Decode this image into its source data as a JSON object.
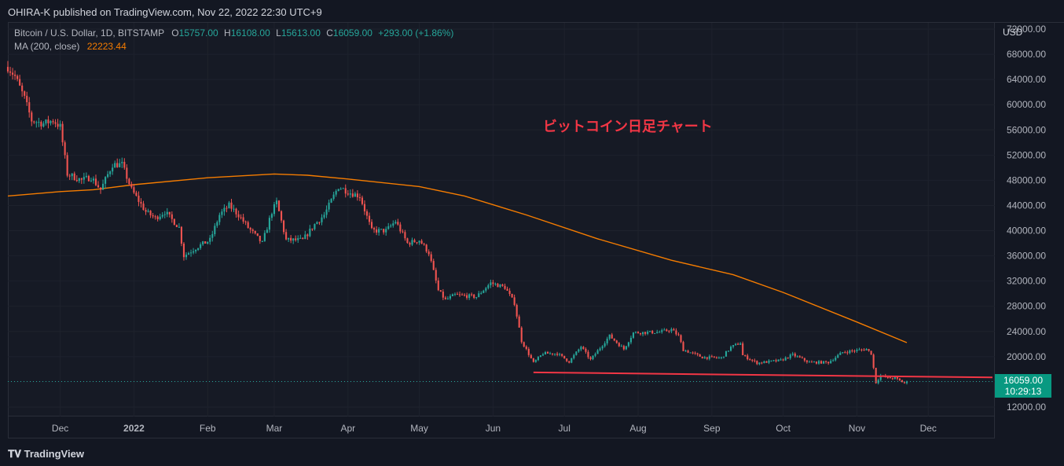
{
  "header": {
    "published_line": "OHIRA-K published on TradingView.com, Nov 22, 2022 22:30 UTC+9"
  },
  "legend": {
    "symbol": "Bitcoin / U.S. Dollar, 1D, BITSTAMP",
    "open_label": "O",
    "open": "15757.00",
    "high_label": "H",
    "high": "16108.00",
    "low_label": "L",
    "low": "15613.00",
    "close_label": "C",
    "close": "16059.00",
    "change": "+293.00 (+1.86%)",
    "ma_label": "MA (200, close)",
    "ma_value": "22223.44"
  },
  "price_axis": {
    "currency": "USD",
    "last_price": "16059.00",
    "countdown": "10:29:13"
  },
  "footer": {
    "brand": "TradingView"
  },
  "colors": {
    "up": "#26a69a",
    "down": "#ef5350",
    "ma": "#f57c00",
    "annotation": "#f23645",
    "background": "#161a25",
    "price_label": "#089981"
  },
  "chart_data": {
    "type": "candlestick",
    "title": "ビットコイン日足チャート",
    "y_ticks": [
      12000,
      16000,
      20000,
      24000,
      28000,
      32000,
      36000,
      40000,
      44000,
      48000,
      52000,
      56000,
      60000,
      64000,
      68000,
      72000
    ],
    "y_tick_labels": [
      "12000.00",
      "16000.00",
      "20000.00",
      "24000.00",
      "28000.00",
      "32000.00",
      "36000.00",
      "40000.00",
      "44000.00",
      "48000.00",
      "52000.00",
      "56000.00",
      "60000.00",
      "64000.00",
      "68000.00",
      "72000.00"
    ],
    "ylim": [
      10500,
      73000
    ],
    "x_labels": [
      {
        "date": "2021-12-01",
        "label": "Dec"
      },
      {
        "date": "2022-01-01",
        "label": "2022"
      },
      {
        "date": "2022-02-01",
        "label": "Feb"
      },
      {
        "date": "2022-03-01",
        "label": "Mar"
      },
      {
        "date": "2022-04-01",
        "label": "Apr"
      },
      {
        "date": "2022-05-01",
        "label": "May"
      },
      {
        "date": "2022-06-01",
        "label": "Jun"
      },
      {
        "date": "2022-07-01",
        "label": "Jul"
      },
      {
        "date": "2022-08-01",
        "label": "Aug"
      },
      {
        "date": "2022-09-01",
        "label": "Sep"
      },
      {
        "date": "2022-10-01",
        "label": "Oct"
      },
      {
        "date": "2022-11-01",
        "label": "Nov"
      },
      {
        "date": "2022-12-01",
        "label": "Dec"
      }
    ],
    "xlim": [
      "2021-11-09",
      "2022-12-29"
    ],
    "price_anchors": [
      [
        "2021-11-09",
        66000
      ],
      [
        "2021-11-12",
        64500
      ],
      [
        "2021-11-16",
        61000
      ],
      [
        "2021-11-19",
        57500
      ],
      [
        "2021-11-24",
        57000
      ],
      [
        "2021-11-28",
        57500
      ],
      [
        "2021-12-01",
        56500
      ],
      [
        "2021-12-04",
        49000
      ],
      [
        "2021-12-10",
        48000
      ],
      [
        "2021-12-14",
        48500
      ],
      [
        "2021-12-18",
        46500
      ],
      [
        "2021-12-23",
        50500
      ],
      [
        "2021-12-27",
        50500
      ],
      [
        "2021-12-31",
        46500
      ],
      [
        "2022-01-06",
        43000
      ],
      [
        "2022-01-10",
        42000
      ],
      [
        "2022-01-14",
        43000
      ],
      [
        "2022-01-20",
        40500
      ],
      [
        "2022-01-22",
        36000
      ],
      [
        "2022-01-24",
        36500
      ],
      [
        "2022-01-28",
        37500
      ],
      [
        "2022-02-02",
        38500
      ],
      [
        "2022-02-06",
        42500
      ],
      [
        "2022-02-10",
        44000
      ],
      [
        "2022-02-14",
        42500
      ],
      [
        "2022-02-18",
        40500
      ],
      [
        "2022-02-24",
        38000
      ],
      [
        "2022-02-28",
        43000
      ],
      [
        "2022-03-02",
        44500
      ],
      [
        "2022-03-06",
        38500
      ],
      [
        "2022-03-13",
        38500
      ],
      [
        "2022-03-18",
        41000
      ],
      [
        "2022-03-22",
        42500
      ],
      [
        "2022-03-28",
        47000
      ],
      [
        "2022-04-02",
        46000
      ],
      [
        "2022-04-06",
        45500
      ],
      [
        "2022-04-11",
        40000
      ],
      [
        "2022-04-17",
        40000
      ],
      [
        "2022-04-21",
        41500
      ],
      [
        "2022-04-26",
        38000
      ],
      [
        "2022-05-01",
        38500
      ],
      [
        "2022-05-05",
        36500
      ],
      [
        "2022-05-09",
        30500
      ],
      [
        "2022-05-12",
        29000
      ],
      [
        "2022-05-16",
        29800
      ],
      [
        "2022-05-25",
        29500
      ],
      [
        "2022-05-31",
        31700
      ],
      [
        "2022-06-06",
        31000
      ],
      [
        "2022-06-10",
        28500
      ],
      [
        "2022-06-13",
        22500
      ],
      [
        "2022-06-18",
        19000
      ],
      [
        "2022-06-22",
        20500
      ],
      [
        "2022-06-28",
        20500
      ],
      [
        "2022-07-03",
        19200
      ],
      [
        "2022-07-08",
        21600
      ],
      [
        "2022-07-12",
        19500
      ],
      [
        "2022-07-20",
        23300
      ],
      [
        "2022-07-26",
        21200
      ],
      [
        "2022-07-30",
        23800
      ],
      [
        "2022-08-10",
        23900
      ],
      [
        "2022-08-15",
        24300
      ],
      [
        "2022-08-18",
        23300
      ],
      [
        "2022-08-20",
        21100
      ],
      [
        "2022-08-28",
        19900
      ],
      [
        "2022-09-05",
        19800
      ],
      [
        "2022-09-09",
        21500
      ],
      [
        "2022-09-13",
        22200
      ],
      [
        "2022-09-14",
        20200
      ],
      [
        "2022-09-20",
        19000
      ],
      [
        "2022-09-30",
        19400
      ],
      [
        "2022-10-05",
        20300
      ],
      [
        "2022-10-12",
        19100
      ],
      [
        "2022-10-20",
        19100
      ],
      [
        "2022-10-26",
        20700
      ],
      [
        "2022-11-05",
        21200
      ],
      [
        "2022-11-07",
        20500
      ],
      [
        "2022-11-09",
        15900
      ],
      [
        "2022-11-11",
        17000
      ],
      [
        "2022-11-14",
        16600
      ],
      [
        "2022-11-17",
        16600
      ],
      [
        "2022-11-21",
        15800
      ],
      [
        "2022-11-22",
        16059
      ]
    ],
    "ma_200": [
      [
        "2021-11-09",
        45500
      ],
      [
        "2021-12-01",
        46200
      ],
      [
        "2021-12-15",
        46500
      ],
      [
        "2022-01-01",
        47300
      ],
      [
        "2022-02-01",
        48400
      ],
      [
        "2022-03-01",
        49000
      ],
      [
        "2022-03-15",
        48800
      ],
      [
        "2022-04-01",
        48200
      ],
      [
        "2022-05-01",
        47000
      ],
      [
        "2022-05-20",
        45500
      ],
      [
        "2022-06-15",
        42500
      ],
      [
        "2022-07-15",
        38700
      ],
      [
        "2022-08-15",
        35300
      ],
      [
        "2022-09-10",
        33000
      ],
      [
        "2022-10-01",
        30200
      ],
      [
        "2022-11-01",
        25500
      ],
      [
        "2022-11-22",
        22223.44
      ]
    ],
    "support_line": {
      "start": [
        "2022-06-18",
        17500
      ],
      "end": [
        "2022-12-28",
        16700
      ]
    },
    "current_price_line": 16059
  }
}
